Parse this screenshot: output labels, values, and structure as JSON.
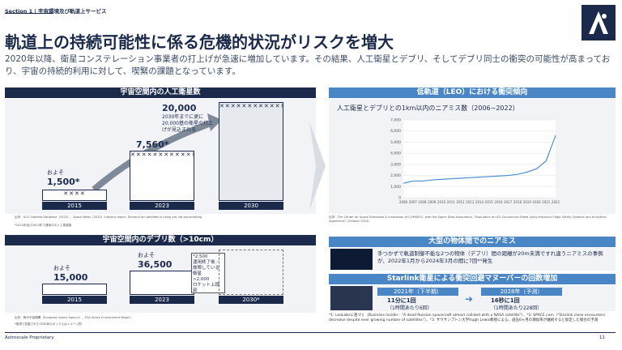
{
  "header": {
    "section": "Section 1 | 宇宙環境及び軌道上サービス",
    "title": "軌道上の持続可能性に係る危機的状況がリスクを増大",
    "body": "2020年以降、衛星コンステレーション事業者の打上げが急速に増加しています。その結果、人工衛星とデブリ、そしてデブリ同士の衝突の可能性が高まっており、宇宙の持続的利用に対して、喫緊の課題となっています。"
  },
  "satellites": {
    "title": "宇宙空間内の人工衛星数",
    "items": [
      {
        "year": "2015",
        "prefix": "およそ",
        "value": "1,500*"
      },
      {
        "year": "2023",
        "value": "7,560*"
      },
      {
        "year": "2030",
        "value": "20,000"
      }
    ],
    "note": "2030年までに更に20,000基の衛星の打上げが見込まれる",
    "source": "出所：UCS Satellite Database（2023）、Space News（2023）Industry report. Demand for satellites is rising but not skyrocketing",
    "footnote": "*2015年及び2023年で運用中の人工衛星数"
  },
  "debris": {
    "title": "宇宙空間内のデブリ数（>10cm）",
    "items": [
      {
        "year": "2015",
        "prefix": "およそ",
        "value": "15,000"
      },
      {
        "year": "2023",
        "prefix": "およそ",
        "value": "36,500"
      },
      {
        "year": "2030*"
      }
    ],
    "callouts": [
      "*2,500",
      "運用終了後／故障している衛星",
      ">2,000",
      "ロケット上段部"
    ],
    "source": "出所：欧州宇宙機関（European Space Agency）、ESA Space Environment Report",
    "footnote": "*推測で記載された2030年のボックスはイメージ図"
  },
  "collision_trend": {
    "title": "低軌道（LEO）における衝突傾向",
    "subtitle": "人工衛星とデブリとの1km以内のニアミス数（2006~2022）",
    "source": "出所：The Center for Space Standards & Innovation at COMSPOC, with the Space Data Association, \"Evaluation of LEO Conjunction Rates Using Historical Flight Safety Systems and Analytical Algorithms\" (October 2023)",
    "chart": {
      "type": "line",
      "color": "#4a8fd0",
      "x": [
        "2006",
        "2007",
        "2008",
        "2009",
        "2010",
        "2011",
        "2012",
        "2013",
        "2014",
        "2015",
        "2016",
        "2017",
        "2018",
        "2019",
        "2020",
        "2021",
        "2022"
      ],
      "values": [
        1300,
        1500,
        1500,
        1600,
        1650,
        1700,
        1750,
        1800,
        1850,
        1900,
        1950,
        2000,
        2100,
        2300,
        2600,
        3300,
        5600
      ],
      "ylim": [
        0,
        7000
      ],
      "yticks": [
        0,
        {
          "value": 1000,
          "label": "1,000"
        },
        {
          "value": 2000,
          "label": "2,000"
        },
        {
          "value": 3000,
          "label": "3,000"
        },
        {
          "value": 4000,
          "label": "4,000"
        },
        {
          "value": 5000,
          "label": "5,000"
        },
        {
          "value": 6000,
          "label": "6,000"
        },
        {
          "value": 7000,
          "label": "7,000"
        }
      ],
      "grid": true
    }
  },
  "near_miss": {
    "title": "大型の物体間でのニアミス",
    "text": "手つかずで軌道制御不能な2つの物体（デブリ）間の距離が20m未満ですれ違うニアミスの事例が、2022年1月から2024年3月の間に7回*¹発生"
  },
  "starlink": {
    "title": "Starlink衛星による衝突回避マヌーバーの回数増加",
    "items": [
      {
        "period": "2021年（下半期）",
        "rate": "11分に1回",
        "detail": "（1時間あたり6回）"
      },
      {
        "period": "2028年（予測）",
        "rate": "16秒に1回",
        "detail": "（1時間あたり228回）"
      }
    ],
    "footnote": "*1: LeoLabsに基づく（Business Insider：\"A dead Russian spacecraft almost collided with a NASA satellite\"）、*2: SPACE.com（\"Starlink close encounters decrease despite ever growing number of satellites\"）、*3: サウサンプトン大学Hugh Lewis教授による、過去6ヶ月の増加率が継続すると仮定した場合の予測"
  },
  "footer": {
    "left": "Astroscale Proprietary",
    "page": "11"
  }
}
